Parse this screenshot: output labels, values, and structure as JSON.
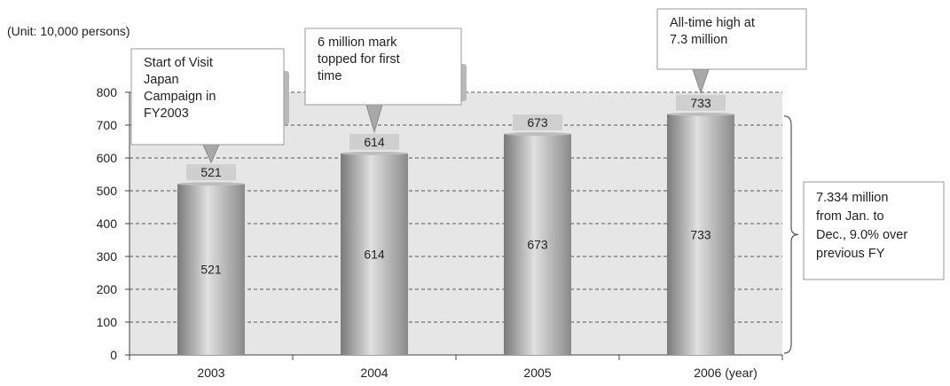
{
  "chart_data": {
    "type": "bar",
    "unit_label": "(Unit: 10,000 persons)",
    "categories": [
      "2003",
      "2004",
      "2005",
      "2006"
    ],
    "category_labels": [
      "2003",
      "2004",
      "2005",
      "2006 (year)"
    ],
    "values": [
      521,
      614,
      673,
      733
    ],
    "top_labels": [
      "521",
      "614",
      "673",
      "733"
    ],
    "inner_labels": [
      "521",
      "614",
      "673",
      "733"
    ],
    "ylim": [
      0,
      800
    ],
    "yticks": [
      0,
      100,
      200,
      300,
      400,
      500,
      600,
      700,
      800
    ],
    "ytick_labels": [
      "0",
      "100",
      "200",
      "300",
      "400",
      "500",
      "600",
      "700",
      "800"
    ],
    "grid": true,
    "annotations": [
      {
        "category": "2003",
        "lines": [
          "Start of Visit",
          "Japan",
          "Campaign in",
          "FY2003"
        ]
      },
      {
        "category": "2004",
        "lines": [
          "6 million mark",
          "topped for first",
          "time"
        ]
      },
      {
        "category": "2006",
        "lines": [
          "All-time high at",
          "7.3 million"
        ]
      }
    ],
    "side_note": {
      "lines": [
        "7.334 million",
        "from Jan. to",
        "Dec., 9.0% over",
        "previous FY"
      ]
    },
    "colors": {
      "plot_bg": "#e6e6e6",
      "bar_dark": "#7a7a7a",
      "bar_light": "#d8d8d8",
      "label_bg": "#cfcfcf",
      "callout_border": "#9a9a9a",
      "arrow": "#a8a8a8"
    }
  }
}
